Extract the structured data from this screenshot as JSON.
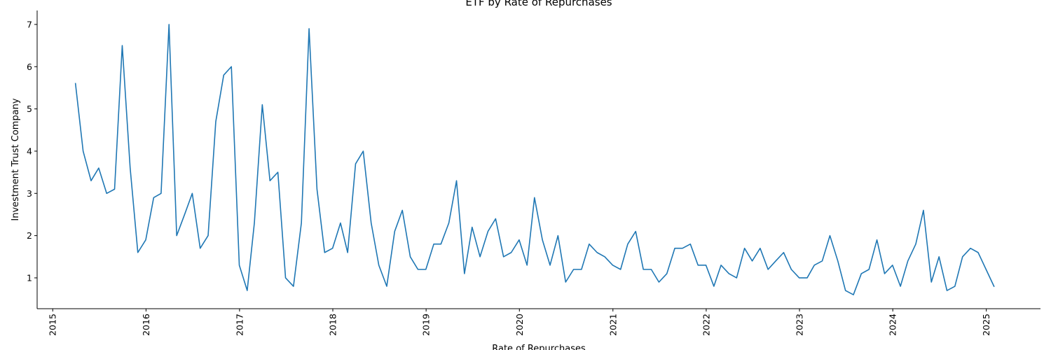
{
  "chart_data": {
    "type": "line",
    "title": "ETF by Rate of Repurchases",
    "xlabel": "Rate of Repurchases",
    "ylabel": "Investment Trust Company",
    "xlim": [
      "2014-11-01",
      "2025-08-01"
    ],
    "ylim": [
      0.27,
      7.33
    ],
    "x_ticks": [
      "2015",
      "2016",
      "2017",
      "2018",
      "2019",
      "2020",
      "2021",
      "2022",
      "2023",
      "2024",
      "2025"
    ],
    "y_ticks": [
      1,
      2,
      3,
      4,
      5,
      6,
      7
    ],
    "grid": false,
    "legend": "none",
    "series": [
      {
        "color": "#1f77b4",
        "points": [
          [
            "2015-03-31",
            5.6
          ],
          [
            "2015-04-30",
            4.0
          ],
          [
            "2015-05-31",
            3.3
          ],
          [
            "2015-06-30",
            3.6
          ],
          [
            "2015-07-31",
            3.0
          ],
          [
            "2015-08-31",
            3.1
          ],
          [
            "2015-09-30",
            6.5
          ],
          [
            "2015-10-31",
            3.6
          ],
          [
            "2015-11-30",
            1.6
          ],
          [
            "2015-12-31",
            1.9
          ],
          [
            "2016-01-31",
            2.9
          ],
          [
            "2016-02-29",
            3.0
          ],
          [
            "2016-03-31",
            7.0
          ],
          [
            "2016-04-30",
            2.0
          ],
          [
            "2016-05-31",
            2.5
          ],
          [
            "2016-06-30",
            3.0
          ],
          [
            "2016-07-31",
            1.7
          ],
          [
            "2016-08-31",
            2.0
          ],
          [
            "2016-09-30",
            4.7
          ],
          [
            "2016-10-31",
            5.8
          ],
          [
            "2016-11-30",
            6.0
          ],
          [
            "2016-12-31",
            1.3
          ],
          [
            "2017-01-31",
            0.7
          ],
          [
            "2017-02-28",
            2.3
          ],
          [
            "2017-03-31",
            5.1
          ],
          [
            "2017-04-30",
            3.3
          ],
          [
            "2017-05-31",
            3.5
          ],
          [
            "2017-06-30",
            1.0
          ],
          [
            "2017-07-31",
            0.8
          ],
          [
            "2017-08-31",
            2.3
          ],
          [
            "2017-09-30",
            6.9
          ],
          [
            "2017-10-31",
            3.1
          ],
          [
            "2017-11-30",
            1.6
          ],
          [
            "2017-12-31",
            1.7
          ],
          [
            "2018-01-31",
            2.3
          ],
          [
            "2018-02-28",
            1.6
          ],
          [
            "2018-03-31",
            3.7
          ],
          [
            "2018-04-30",
            4.0
          ],
          [
            "2018-05-31",
            2.3
          ],
          [
            "2018-06-30",
            1.3
          ],
          [
            "2018-07-31",
            0.8
          ],
          [
            "2018-08-31",
            2.1
          ],
          [
            "2018-09-30",
            2.6
          ],
          [
            "2018-10-31",
            1.5
          ],
          [
            "2018-11-30",
            1.2
          ],
          [
            "2018-12-31",
            1.2
          ],
          [
            "2019-01-31",
            1.8
          ],
          [
            "2019-02-28",
            1.8
          ],
          [
            "2019-03-31",
            2.3
          ],
          [
            "2019-04-30",
            3.3
          ],
          [
            "2019-05-31",
            1.1
          ],
          [
            "2019-06-30",
            2.2
          ],
          [
            "2019-07-31",
            1.5
          ],
          [
            "2019-08-31",
            2.1
          ],
          [
            "2019-09-30",
            2.4
          ],
          [
            "2019-10-31",
            1.5
          ],
          [
            "2019-11-30",
            1.6
          ],
          [
            "2019-12-31",
            1.9
          ],
          [
            "2020-01-31",
            1.3
          ],
          [
            "2020-02-29",
            2.9
          ],
          [
            "2020-03-31",
            1.9
          ],
          [
            "2020-04-30",
            1.3
          ],
          [
            "2020-05-31",
            2.0
          ],
          [
            "2020-06-30",
            0.9
          ],
          [
            "2020-07-31",
            1.2
          ],
          [
            "2020-08-31",
            1.2
          ],
          [
            "2020-09-30",
            1.8
          ],
          [
            "2020-10-31",
            1.6
          ],
          [
            "2020-11-30",
            1.5
          ],
          [
            "2020-12-31",
            1.3
          ],
          [
            "2021-01-31",
            1.2
          ],
          [
            "2021-02-28",
            1.8
          ],
          [
            "2021-03-31",
            2.1
          ],
          [
            "2021-04-30",
            1.2
          ],
          [
            "2021-05-31",
            1.2
          ],
          [
            "2021-06-30",
            0.9
          ],
          [
            "2021-07-31",
            1.1
          ],
          [
            "2021-08-31",
            1.7
          ],
          [
            "2021-09-30",
            1.7
          ],
          [
            "2021-10-31",
            1.8
          ],
          [
            "2021-11-30",
            1.3
          ],
          [
            "2021-12-31",
            1.3
          ],
          [
            "2022-01-31",
            0.8
          ],
          [
            "2022-02-28",
            1.3
          ],
          [
            "2022-03-31",
            1.1
          ],
          [
            "2022-04-30",
            1.0
          ],
          [
            "2022-05-31",
            1.7
          ],
          [
            "2022-06-30",
            1.4
          ],
          [
            "2022-07-31",
            1.7
          ],
          [
            "2022-08-31",
            1.2
          ],
          [
            "2022-09-30",
            1.4
          ],
          [
            "2022-10-31",
            1.6
          ],
          [
            "2022-11-30",
            1.2
          ],
          [
            "2022-12-31",
            1.0
          ],
          [
            "2023-01-31",
            1.0
          ],
          [
            "2023-02-28",
            1.3
          ],
          [
            "2023-03-31",
            1.4
          ],
          [
            "2023-04-30",
            2.0
          ],
          [
            "2023-05-31",
            1.4
          ],
          [
            "2023-06-30",
            0.7
          ],
          [
            "2023-07-31",
            0.6
          ],
          [
            "2023-08-31",
            1.1
          ],
          [
            "2023-09-30",
            1.2
          ],
          [
            "2023-10-31",
            1.9
          ],
          [
            "2023-11-30",
            1.1
          ],
          [
            "2023-12-31",
            1.3
          ],
          [
            "2024-01-31",
            0.8
          ],
          [
            "2024-02-29",
            1.4
          ],
          [
            "2024-03-31",
            1.8
          ],
          [
            "2024-04-30",
            2.6
          ],
          [
            "2024-05-31",
            0.9
          ],
          [
            "2024-06-30",
            1.5
          ],
          [
            "2024-07-31",
            0.7
          ],
          [
            "2024-08-31",
            0.8
          ],
          [
            "2024-09-30",
            1.5
          ],
          [
            "2024-10-31",
            1.7
          ],
          [
            "2024-11-30",
            1.6
          ],
          [
            "2024-12-31",
            1.2
          ],
          [
            "2025-01-31",
            0.8
          ]
        ]
      }
    ]
  }
}
